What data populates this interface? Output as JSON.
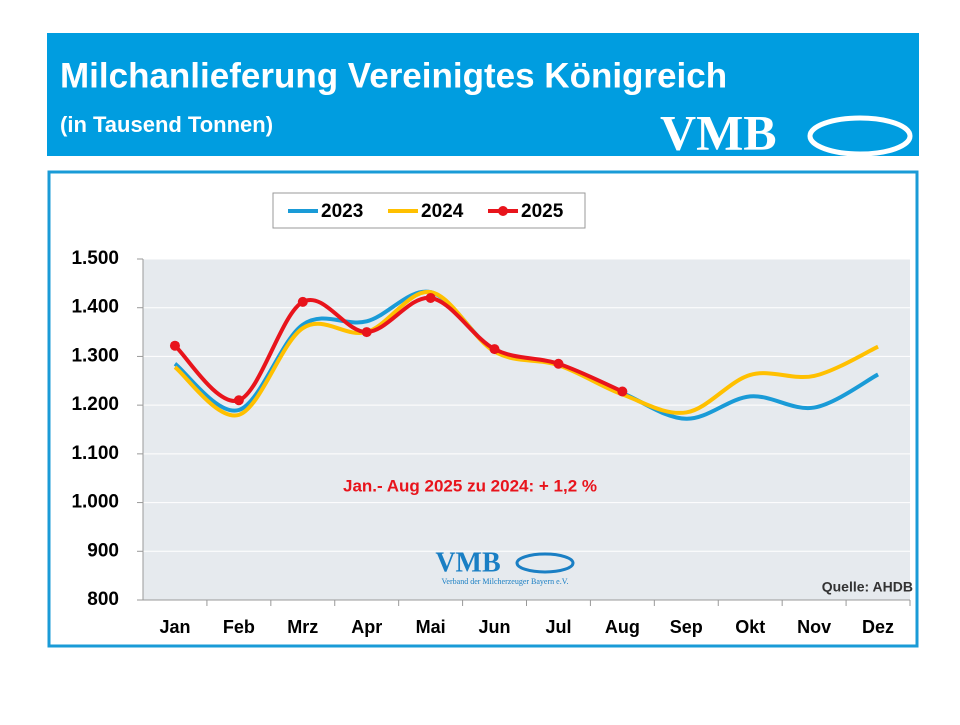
{
  "chart_data": {
    "type": "line",
    "title": "Milchanlieferung Vereinigtes Königreich",
    "subtitle": "(in Tausend Tonnen)",
    "logo_text": "VMB",
    "logo_subtitle": "Verband der Milcherzeuger Bayern e.V.",
    "annotation": "Jan.- Aug 2025 zu 2024: + 1,2 %",
    "source": "Quelle: AHDB",
    "categories": [
      "Jan",
      "Feb",
      "Mrz",
      "Apr",
      "Mai",
      "Jun",
      "Jul",
      "Aug",
      "Sep",
      "Okt",
      "Nov",
      "Dez"
    ],
    "series": [
      {
        "name": "2023",
        "color": "#1a9bd7",
        "markers": false,
        "values": [
          1285,
          1190,
          1365,
          1372,
          1432,
          1312,
          1283,
          1225,
          1172,
          1218,
          1195,
          1263
        ]
      },
      {
        "name": "2024",
        "color": "#ffc000",
        "markers": false,
        "values": [
          1278,
          1180,
          1358,
          1350,
          1432,
          1310,
          1282,
          1222,
          1185,
          1262,
          1260,
          1320
        ]
      },
      {
        "name": "2025",
        "color": "#e8141c",
        "markers": true,
        "values": [
          1322,
          1210,
          1412,
          1350,
          1420,
          1315,
          1285,
          1228,
          null,
          null,
          null,
          null
        ]
      }
    ],
    "ylim": [
      800,
      1500
    ],
    "yticks": [
      800,
      900,
      {
        "value": 1000,
        "label": "1.000"
      },
      {
        "value": 1100,
        "label": "1.100"
      },
      {
        "value": 1200,
        "label": "1.200"
      },
      {
        "value": 1300,
        "label": "1.300"
      },
      {
        "value": 1400,
        "label": "1.400"
      },
      {
        "value": 1500,
        "label": "1.500"
      }
    ],
    "grid": true
  }
}
